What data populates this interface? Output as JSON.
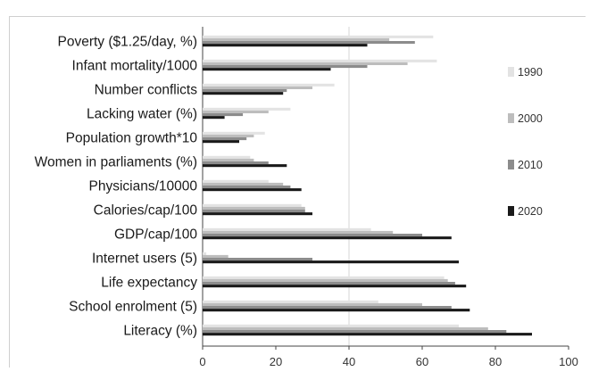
{
  "chart_data": {
    "type": "bar",
    "orientation": "horizontal",
    "categories": [
      "Poverty ($1.25/day, %)",
      "Infant mortality/1000",
      "Number conflicts",
      "Lacking water (%)",
      "Population growth*10",
      "Women in parliaments (%)",
      "Physicians/10000",
      "Calories/cap/100",
      "GDP/cap/100",
      "Internet users (5)",
      "Life expectancy",
      "School enrolment (5)",
      "Literacy (%)"
    ],
    "series": [
      {
        "name": "1990",
        "color": "#e3e3e3",
        "values": [
          63,
          64,
          36,
          24,
          17,
          13,
          18,
          27,
          46,
          1,
          66,
          48,
          70
        ]
      },
      {
        "name": "2000",
        "color": "#bdbdbd",
        "values": [
          51,
          56,
          30,
          18,
          14,
          14,
          22,
          28,
          52,
          7,
          67,
          60,
          78
        ]
      },
      {
        "name": "2010",
        "color": "#8c8c8c",
        "values": [
          58,
          45,
          23,
          11,
          12,
          18,
          24,
          28,
          60,
          30,
          69,
          68,
          83
        ]
      },
      {
        "name": "2020",
        "color": "#1a1a1a",
        "values": [
          45,
          35,
          22,
          6,
          10,
          23,
          27,
          30,
          68,
          70,
          72,
          73,
          90
        ]
      }
    ],
    "xlim": [
      0,
      100
    ],
    "xticks": [
      0,
      20,
      40,
      60,
      80,
      100
    ],
    "grid": "vertical line at x=40",
    "legend_position": "right"
  }
}
